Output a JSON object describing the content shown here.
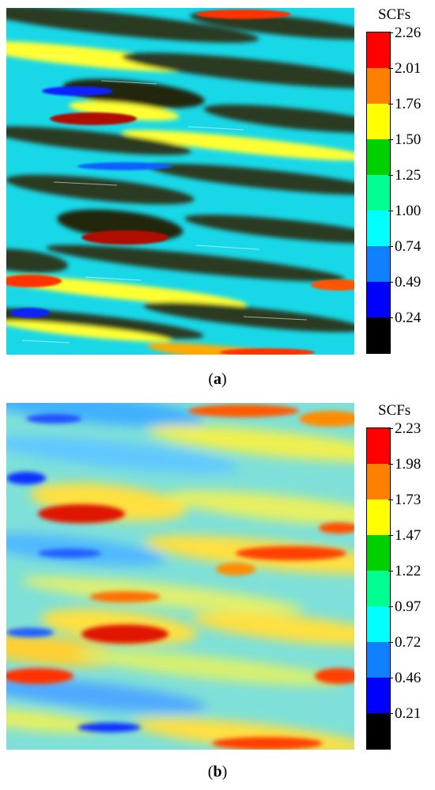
{
  "panels": [
    {
      "id": "a",
      "colorbar_title": "SCFs",
      "ticks": [
        "2.26",
        "2.01",
        "1.76",
        "1.50",
        "1.25",
        "1.00",
        "0.74",
        "0.49",
        "0.24"
      ],
      "caption_open": "(",
      "caption_letter": "a",
      "caption_close": ")",
      "colormap": [
        "#ff0000",
        "#ff7f00",
        "#ffff00",
        "#00d000",
        "#00ff90",
        "#00ffff",
        "#1080ff",
        "#0000ff",
        "#000000"
      ],
      "style": "dark-streaks"
    },
    {
      "id": "b",
      "colorbar_title": "SCFs",
      "ticks": [
        "2.23",
        "1.98",
        "1.73",
        "1.47",
        "1.22",
        "0.97",
        "0.72",
        "0.46",
        "0.21"
      ],
      "caption_open": "(",
      "caption_letter": "b",
      "caption_close": ")",
      "colormap": [
        "#ff0000",
        "#ff7f00",
        "#ffff00",
        "#00d000",
        "#00ff90",
        "#00ffff",
        "#1080ff",
        "#0000ff",
        "#000000"
      ],
      "style": "smooth"
    }
  ]
}
